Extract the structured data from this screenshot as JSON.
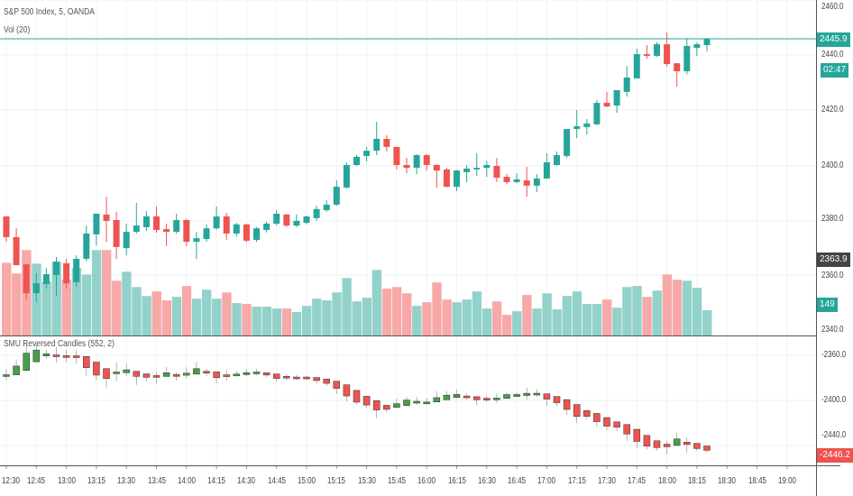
{
  "header": {
    "symbol_title": "S&P 500 Index, 5, OANDA",
    "volume_title": "Vol (20)",
    "indicator_title": "SMU Reversed Candles (552, 2)"
  },
  "colors": {
    "up": "#26a69a",
    "down": "#ef5350",
    "up_vol": "#93d2cb",
    "down_vol": "#f7a9a7",
    "rev_up": "#43a047",
    "rev_down": "#ef5350",
    "dark_tag": "#444444"
  },
  "price_axis": {
    "labels": [
      "2460.0",
      "2440.0",
      "2420.0",
      "2400.0",
      "2380.0",
      "2360.0",
      "2340.0"
    ],
    "last_price": "2445.9",
    "countdown": "02:47",
    "crosshair_price": "2363.9",
    "last_volume": "149"
  },
  "indicator_axis": {
    "labels": [
      "-2360.0",
      "-2400.0",
      "-2440.0"
    ],
    "last_value": "-2446.2"
  },
  "time_axis": [
    "12:30",
    "12:45",
    "13:00",
    "13:15",
    "13:30",
    "13:45",
    "14:00",
    "14:15",
    "14:30",
    "14:45",
    "15:00",
    "15:15",
    "15:30",
    "15:45",
    "16:00",
    "16:15",
    "16:30",
    "16:45",
    "17:00",
    "17:15",
    "17:30",
    "17:45",
    "18:00",
    "18:15",
    "18:30",
    "18:45",
    "19:00"
  ],
  "chart_data": {
    "type": "candlestick",
    "title": "S&P 500 Index, 5, OANDA",
    "interval_minutes": 5,
    "start_time": "12:30",
    "ylim": [
      2340,
      2460
    ],
    "ohlc": [
      [
        2381.3,
        2381.5,
        2372.1,
        2373.8
      ],
      [
        2373.8,
        2377.0,
        2363.6,
        2363.6
      ],
      [
        2363.9,
        2364.0,
        2351.1,
        2353.4
      ],
      [
        2353.4,
        2360.7,
        2350.2,
        2357.0
      ],
      [
        2356.7,
        2362.6,
        2355.1,
        2360.3
      ],
      [
        2360.0,
        2366.6,
        2352.5,
        2364.9
      ],
      [
        2364.3,
        2365.9,
        2355.0,
        2357.0
      ],
      [
        2357.4,
        2367.2,
        2355.7,
        2365.9
      ],
      [
        2365.9,
        2378.0,
        2365.0,
        2375.1
      ],
      [
        2374.8,
        2382.3,
        2370.8,
        2382.3
      ],
      [
        2382.0,
        2388.5,
        2372.1,
        2379.7
      ],
      [
        2380.0,
        2383.0,
        2365.9,
        2370.2
      ],
      [
        2369.8,
        2378.7,
        2367.2,
        2375.7
      ],
      [
        2375.7,
        2386.2,
        2375.0,
        2378.0
      ],
      [
        2377.4,
        2383.3,
        2376.0,
        2381.3
      ],
      [
        2381.3,
        2384.9,
        2375.4,
        2376.4
      ],
      [
        2376.7,
        2378.7,
        2370.5,
        2375.7
      ],
      [
        2375.7,
        2382.3,
        2375.0,
        2380.0
      ],
      [
        2380.0,
        2380.5,
        2370.5,
        2372.1
      ],
      [
        2372.1,
        2375.7,
        2365.9,
        2373.4
      ],
      [
        2373.1,
        2378.4,
        2372.1,
        2377.0
      ],
      [
        2377.0,
        2384.9,
        2376.4,
        2381.3
      ],
      [
        2381.3,
        2382.6,
        2372.8,
        2375.1
      ],
      [
        2375.1,
        2379.0,
        2374.0,
        2378.4
      ],
      [
        2378.4,
        2378.7,
        2372.0,
        2372.5
      ],
      [
        2372.8,
        2377.5,
        2372.0,
        2377.0
      ],
      [
        2376.4,
        2379.4,
        2375.5,
        2378.7
      ],
      [
        2378.7,
        2383.6,
        2378.0,
        2382.3
      ],
      [
        2382.0,
        2382.3,
        2377.4,
        2378.0
      ],
      [
        2378.0,
        2382.0,
        2377.4,
        2379.7
      ],
      [
        2379.0,
        2381.6,
        2378.4,
        2381.3
      ],
      [
        2380.7,
        2385.2,
        2379.7,
        2384.0
      ],
      [
        2383.6,
        2387.2,
        2383.0,
        2385.6
      ],
      [
        2385.6,
        2394.4,
        2385.2,
        2392.1
      ],
      [
        2391.8,
        2401.0,
        2391.5,
        2400.0
      ],
      [
        2400.0,
        2403.6,
        2399.7,
        2403.0
      ],
      [
        2403.3,
        2406.6,
        2401.3,
        2405.2
      ],
      [
        2405.2,
        2415.7,
        2403.6,
        2409.5
      ],
      [
        2409.5,
        2410.8,
        2405.0,
        2406.6
      ],
      [
        2406.6,
        2406.6,
        2398.4,
        2400.0
      ],
      [
        2400.0,
        2402.6,
        2397.0,
        2399.0
      ],
      [
        2399.0,
        2403.9,
        2396.7,
        2403.6
      ],
      [
        2403.6,
        2404.0,
        2398.0,
        2400.0
      ],
      [
        2400.0,
        2400.3,
        2391.8,
        2398.0
      ],
      [
        2398.4,
        2399.0,
        2391.8,
        2392.1
      ],
      [
        2392.1,
        2398.2,
        2390.5,
        2398.0
      ],
      [
        2397.4,
        2400.0,
        2393.8,
        2398.7
      ],
      [
        2398.4,
        2404.3,
        2396.0,
        2399.0
      ],
      [
        2399.0,
        2401.6,
        2395.7,
        2400.0
      ],
      [
        2399.7,
        2402.6,
        2393.8,
        2395.4
      ],
      [
        2395.7,
        2396.7,
        2393.0,
        2393.8
      ],
      [
        2393.8,
        2397.0,
        2393.4,
        2394.8
      ],
      [
        2394.4,
        2399.3,
        2388.5,
        2392.5
      ],
      [
        2392.5,
        2396.7,
        2390.2,
        2395.1
      ],
      [
        2395.1,
        2404.3,
        2395.0,
        2401.0
      ],
      [
        2400.0,
        2404.9,
        2399.7,
        2403.6
      ],
      [
        2403.3,
        2413.1,
        2402.6,
        2413.1
      ],
      [
        2413.1,
        2420.0,
        2409.8,
        2414.1
      ],
      [
        2413.8,
        2416.7,
        2411.1,
        2415.1
      ],
      [
        2414.8,
        2423.6,
        2414.5,
        2422.6
      ],
      [
        2422.6,
        2426.6,
        2421.0,
        2421.3
      ],
      [
        2421.6,
        2427.2,
        2419.0,
        2427.2
      ],
      [
        2426.6,
        2436.0,
        2424.9,
        2431.8
      ],
      [
        2431.5,
        2442.3,
        2431.5,
        2440.3
      ],
      [
        2440.3,
        2443.6,
        2438.7,
        2439.7
      ],
      [
        2439.7,
        2444.6,
        2439.3,
        2443.9
      ],
      [
        2443.9,
        2448.2,
        2435.7,
        2436.7
      ],
      [
        2437.0,
        2437.0,
        2428.5,
        2434.1
      ],
      [
        2434.1,
        2446.2,
        2433.0,
        2443.3
      ],
      [
        2442.6,
        2444.6,
        2439.7,
        2443.9
      ],
      [
        2443.6,
        2446.2,
        2441.3,
        2445.9
      ]
    ],
    "volume": [
      429,
      366,
      504,
      424,
      318,
      435,
      329,
      398,
      360,
      504,
      504,
      323,
      376,
      286,
      233,
      260,
      207,
      228,
      292,
      217,
      270,
      217,
      254,
      191,
      186,
      170,
      170,
      159,
      159,
      138,
      175,
      217,
      207,
      254,
      339,
      201,
      223,
      387,
      276,
      286,
      249,
      175,
      196,
      313,
      212,
      196,
      212,
      260,
      159,
      201,
      122,
      143,
      239,
      159,
      249,
      154,
      233,
      260,
      186,
      186,
      212,
      164,
      286,
      292,
      228,
      265,
      360,
      329,
      323,
      281,
      149
    ],
    "indicator": {
      "name": "SMU Reversed Candles",
      "params": [
        552,
        2
      ],
      "ylim": [
        -2460,
        -2345
      ],
      "last": -2446.2
    }
  }
}
